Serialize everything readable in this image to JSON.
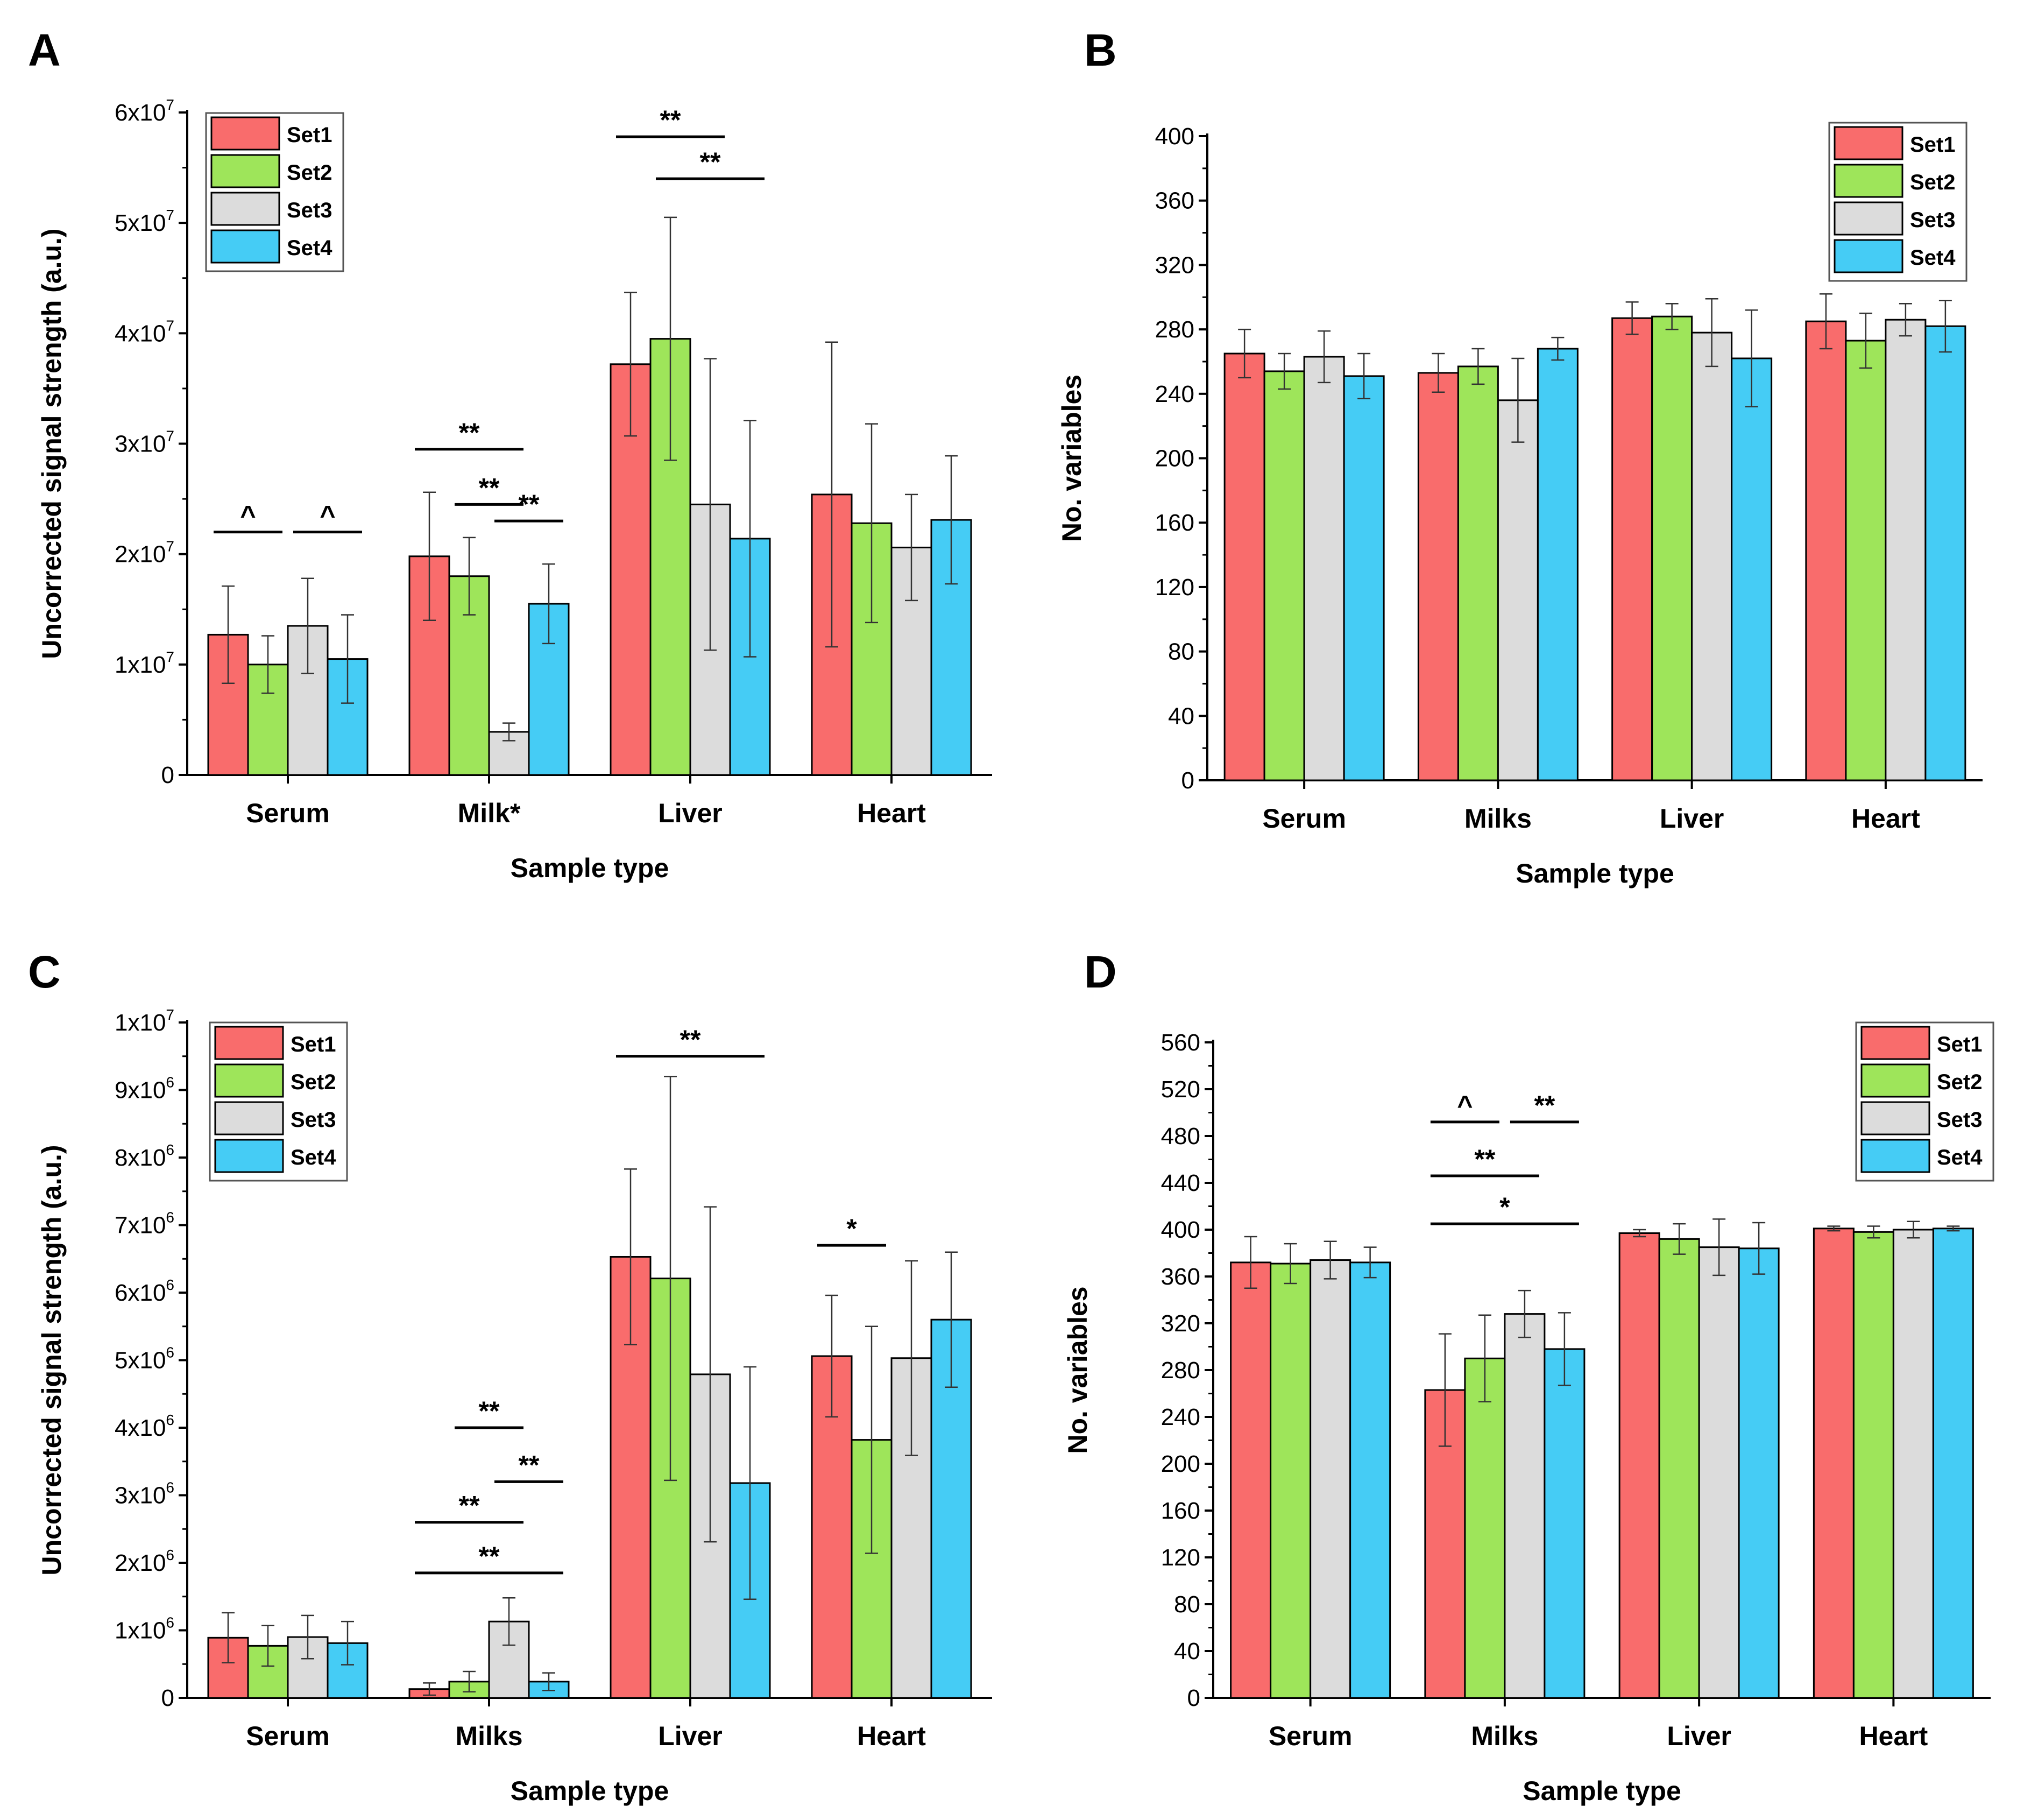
{
  "colors": {
    "Set1": "#f96c6c",
    "Set2": "#9ee55a",
    "Set3": "#dcdcdc",
    "Set4": "#45ccf5"
  },
  "chart_data": [
    {
      "panel": "A",
      "type": "bar",
      "categories": [
        "Serum",
        "Milk*",
        "Liver",
        "Heart"
      ],
      "xlabel": "Sample type",
      "ylabel": "Uncorrected signal strength (a.u.)",
      "ylim": [
        0,
        60000000
      ],
      "yticks": [
        {
          "value": 0,
          "label": "0"
        },
        {
          "value": 10000000,
          "label": "1x10",
          "exp": "7"
        },
        {
          "value": 20000000,
          "label": "2x10",
          "exp": "7"
        },
        {
          "value": 30000000,
          "label": "3x10",
          "exp": "7"
        },
        {
          "value": 40000000,
          "label": "4x10",
          "exp": "7"
        },
        {
          "value": 50000000,
          "label": "5x10",
          "exp": "7"
        },
        {
          "value": 60000000,
          "label": "6x10",
          "exp": "7"
        }
      ],
      "series": [
        {
          "name": "Set1",
          "values": [
            12700000,
            19800000,
            37200000,
            25400000
          ],
          "errors": [
            4400000,
            5800000,
            6500000,
            13800000
          ]
        },
        {
          "name": "Set2",
          "values": [
            10000000,
            18000000,
            39500000,
            22800000
          ],
          "errors": [
            2600000,
            3500000,
            11000000,
            9000000
          ]
        },
        {
          "name": "Set3",
          "values": [
            13500000,
            3900000,
            24500000,
            20600000
          ],
          "errors": [
            4300000,
            800000,
            13200000,
            4800000
          ]
        },
        {
          "name": "Set4",
          "values": [
            10500000,
            15500000,
            21400000,
            23100000
          ],
          "errors": [
            4000000,
            3600000,
            10700000,
            5800000
          ]
        }
      ],
      "legend": "top-left",
      "annotations": [
        {
          "text": "^",
          "category": 0,
          "from": 0,
          "to": 1,
          "level": 22000000
        },
        {
          "text": "^",
          "category": 0,
          "from": 2,
          "to": 3,
          "level": 22000000
        },
        {
          "text": "**",
          "category": 1,
          "from": 0,
          "to": 2,
          "level": 29500000
        },
        {
          "text": "**",
          "category": 1,
          "from": 1,
          "to": 2,
          "level": 24500000
        },
        {
          "text": "**",
          "category": 1,
          "from": 2,
          "to": 3,
          "level": 23000000
        },
        {
          "text": "**",
          "category": 2,
          "from": 0,
          "to": 2,
          "level": 57800000
        },
        {
          "text": "**",
          "category": 2,
          "from": 1,
          "to": 3,
          "level": 54000000
        }
      ]
    },
    {
      "panel": "B",
      "type": "bar",
      "categories": [
        "Serum",
        "Milks",
        "Liver",
        "Heart"
      ],
      "xlabel": "Sample type",
      "ylabel": "No. variables",
      "ylim": [
        0,
        400
      ],
      "yticks": [
        {
          "value": 0,
          "label": "0"
        },
        {
          "value": 40,
          "label": "40"
        },
        {
          "value": 80,
          "label": "80"
        },
        {
          "value": 120,
          "label": "120"
        },
        {
          "value": 160,
          "label": "160"
        },
        {
          "value": 200,
          "label": "200"
        },
        {
          "value": 240,
          "label": "240"
        },
        {
          "value": 280,
          "label": "280"
        },
        {
          "value": 320,
          "label": "320"
        },
        {
          "value": 360,
          "label": "360"
        },
        {
          "value": 400,
          "label": "400"
        }
      ],
      "series": [
        {
          "name": "Set1",
          "values": [
            265,
            253,
            287,
            285
          ],
          "errors": [
            15,
            12,
            10,
            17
          ]
        },
        {
          "name": "Set2",
          "values": [
            254,
            257,
            288,
            273
          ],
          "errors": [
            11,
            11,
            8,
            17
          ]
        },
        {
          "name": "Set3",
          "values": [
            263,
            236,
            278,
            286
          ],
          "errors": [
            16,
            26,
            21,
            10
          ]
        },
        {
          "name": "Set4",
          "values": [
            251,
            268,
            262,
            282
          ],
          "errors": [
            14,
            7,
            30,
            16
          ]
        }
      ],
      "legend": "top-right",
      "annotations": []
    },
    {
      "panel": "C",
      "type": "bar",
      "categories": [
        "Serum",
        "Milks",
        "Liver",
        "Heart"
      ],
      "xlabel": "Sample type",
      "ylabel": "Uncorrected signal strength (a.u.)",
      "ylim": [
        0,
        10000000
      ],
      "yticks": [
        {
          "value": 0,
          "label": "0"
        },
        {
          "value": 1000000,
          "label": "1x10",
          "exp": "6"
        },
        {
          "value": 2000000,
          "label": "2x10",
          "exp": "6"
        },
        {
          "value": 3000000,
          "label": "3x10",
          "exp": "6"
        },
        {
          "value": 4000000,
          "label": "4x10",
          "exp": "6"
        },
        {
          "value": 5000000,
          "label": "5x10",
          "exp": "6"
        },
        {
          "value": 6000000,
          "label": "6x10",
          "exp": "6"
        },
        {
          "value": 7000000,
          "label": "7x10",
          "exp": "6"
        },
        {
          "value": 8000000,
          "label": "8x10",
          "exp": "6"
        },
        {
          "value": 9000000,
          "label": "9x10",
          "exp": "6"
        },
        {
          "value": 10000000,
          "label": "1x10",
          "exp": "7"
        }
      ],
      "series": [
        {
          "name": "Set1",
          "values": [
            890000,
            130000,
            6530000,
            5060000
          ],
          "errors": [
            370000,
            90000,
            1300000,
            900000
          ]
        },
        {
          "name": "Set2",
          "values": [
            770000,
            240000,
            6210000,
            3820000
          ],
          "errors": [
            300000,
            150000,
            2990000,
            1680000
          ]
        },
        {
          "name": "Set3",
          "values": [
            900000,
            1130000,
            4790000,
            5030000
          ],
          "errors": [
            320000,
            350000,
            2480000,
            1440000
          ]
        },
        {
          "name": "Set4",
          "values": [
            810000,
            240000,
            3180000,
            5600000
          ],
          "errors": [
            320000,
            130000,
            1720000,
            1000000
          ]
        }
      ],
      "legend": "top-left",
      "annotations": [
        {
          "text": "**",
          "category": 1,
          "from": 1,
          "to": 2,
          "level": 4000000
        },
        {
          "text": "**",
          "category": 1,
          "from": 2,
          "to": 3,
          "level": 3200000
        },
        {
          "text": "**",
          "category": 1,
          "from": 0,
          "to": 2,
          "level": 2600000
        },
        {
          "text": "**",
          "category": 1,
          "from": 0,
          "to": 3,
          "level": 1850000
        },
        {
          "text": "**",
          "category": 2,
          "from": 0,
          "to": 3,
          "level": 9500000
        },
        {
          "text": "*",
          "category": 3,
          "from": 0,
          "to": 1,
          "level": 6700000
        }
      ]
    },
    {
      "panel": "D",
      "type": "bar",
      "categories": [
        "Serum",
        "Milks",
        "Liver",
        "Heart"
      ],
      "xlabel": "Sample type",
      "ylabel": "No. variables",
      "ylim": [
        0,
        560
      ],
      "yticks": [
        {
          "value": 0,
          "label": "0"
        },
        {
          "value": 40,
          "label": "40"
        },
        {
          "value": 80,
          "label": "80"
        },
        {
          "value": 120,
          "label": "120"
        },
        {
          "value": 160,
          "label": "160"
        },
        {
          "value": 200,
          "label": "200"
        },
        {
          "value": 240,
          "label": "240"
        },
        {
          "value": 280,
          "label": "280"
        },
        {
          "value": 320,
          "label": "320"
        },
        {
          "value": 360,
          "label": "360"
        },
        {
          "value": 400,
          "label": "400"
        },
        {
          "value": 440,
          "label": "440"
        },
        {
          "value": 480,
          "label": "480"
        },
        {
          "value": 520,
          "label": "520"
        },
        {
          "value": 560,
          "label": "560"
        }
      ],
      "series": [
        {
          "name": "Set1",
          "values": [
            372,
            263,
            397,
            401
          ],
          "errors": [
            22,
            48,
            3,
            2
          ]
        },
        {
          "name": "Set2",
          "values": [
            371,
            290,
            392,
            398
          ],
          "errors": [
            17,
            37,
            13,
            5
          ]
        },
        {
          "name": "Set3",
          "values": [
            374,
            328,
            385,
            400
          ],
          "errors": [
            16,
            20,
            24,
            7
          ]
        },
        {
          "name": "Set4",
          "values": [
            372,
            298,
            384,
            401
          ],
          "errors": [
            13,
            31,
            22,
            2
          ]
        }
      ],
      "legend": "top-right",
      "annotations": [
        {
          "text": "^",
          "category": 1,
          "from": 0,
          "to": 1,
          "level": 492
        },
        {
          "text": "**",
          "category": 1,
          "from": 2,
          "to": 3,
          "level": 492
        },
        {
          "text": "**",
          "category": 1,
          "from": 0,
          "to": 2,
          "level": 446
        },
        {
          "text": "*",
          "category": 1,
          "from": 0,
          "to": 3,
          "level": 405
        }
      ]
    }
  ]
}
